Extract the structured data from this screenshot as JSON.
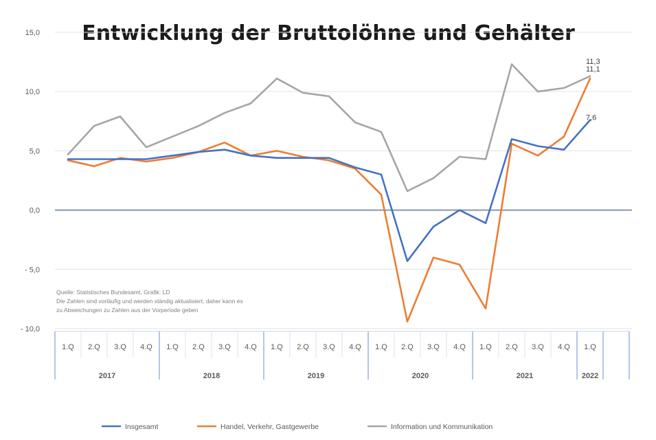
{
  "chart_data": {
    "type": "line",
    "title": "Entwicklung der Bruttolöhne und Gehälter",
    "xlabel": "",
    "ylabel": "",
    "ylim": [
      -10,
      15
    ],
    "yticks": [
      15,
      10,
      5,
      0,
      -5,
      -10
    ],
    "ytick_labels": [
      "15,0",
      "10,0",
      "5,0",
      "0,0",
      "- 5,0",
      "- 10,0"
    ],
    "grid": true,
    "legend_position": "bottom",
    "categories": [
      "1.Q",
      "2.Q",
      "3.Q",
      "4.Q",
      "1.Q",
      "2.Q",
      "3.Q",
      "4.Q",
      "1.Q",
      "2.Q",
      "3.Q",
      "4.Q",
      "1.Q",
      "2.Q",
      "3.Q",
      "4.Q",
      "1.Q",
      "2.Q",
      "3.Q",
      "4.Q",
      "1.Q"
    ],
    "years": [
      {
        "label": "2017",
        "start": 0,
        "count": 4
      },
      {
        "label": "2018",
        "start": 4,
        "count": 4
      },
      {
        "label": "2019",
        "start": 8,
        "count": 4
      },
      {
        "label": "2020",
        "start": 12,
        "count": 4
      },
      {
        "label": "2021",
        "start": 16,
        "count": 4
      },
      {
        "label": "2022",
        "start": 20,
        "count": 1
      }
    ],
    "series": [
      {
        "name": "Insgesamt",
        "color": "#4472c4",
        "values": [
          4.3,
          4.3,
          4.3,
          4.3,
          4.6,
          4.9,
          5.1,
          4.6,
          4.4,
          4.4,
          4.4,
          3.6,
          3.0,
          -4.3,
          -1.4,
          0.0,
          -1.1,
          6.0,
          5.4,
          5.1,
          7.6
        ],
        "last_label": "7,6"
      },
      {
        "name": "Handel, Verkehr, Gastgewerbe",
        "color": "#ed7d31",
        "values": [
          4.2,
          3.7,
          4.4,
          4.1,
          4.4,
          4.9,
          5.7,
          4.6,
          5.0,
          4.5,
          4.2,
          3.5,
          1.3,
          -9.4,
          -4.0,
          -4.6,
          -8.3,
          5.6,
          4.6,
          6.2,
          11.1
        ],
        "last_label": "11,1"
      },
      {
        "name": "Information und Kommunikation",
        "color": "#a5a5a5",
        "values": [
          4.7,
          7.1,
          7.9,
          5.3,
          6.2,
          7.1,
          8.2,
          9.0,
          11.1,
          9.9,
          9.6,
          7.4,
          6.6,
          1.6,
          2.7,
          4.5,
          4.3,
          12.3,
          10.0,
          10.3,
          11.3
        ],
        "last_label": "11,3"
      }
    ],
    "annotation": {
      "lines": [
        "Quelle: Statistisches Bundesamt, Grafik: LD",
        "Die Zahlen sind vorläufig und werden ständig aktualisiert, daher kann es",
        "zu Abweichungen zu Zahlen aus der Vorperiode geben"
      ]
    }
  }
}
